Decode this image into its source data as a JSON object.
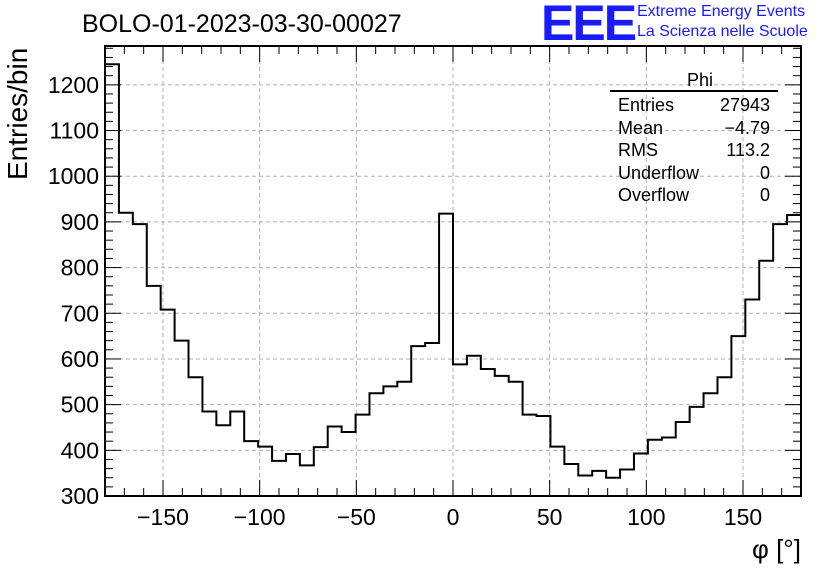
{
  "title": "BOLO-01-2023-03-30-00027",
  "logo": {
    "text": "EEE",
    "line1": "Extreme Energy Events",
    "line2": "La Scienza nelle Scuole",
    "color": "#1a1aff"
  },
  "stats": {
    "title": "Phi",
    "rows": [
      {
        "label": "Entries",
        "value": "27943"
      },
      {
        "label": "Mean",
        "value": "−4.79"
      },
      {
        "label": "RMS",
        "value": "113.2"
      },
      {
        "label": "Underflow",
        "value": "0"
      },
      {
        "label": "Overflow",
        "value": "0"
      }
    ]
  },
  "chart_data": {
    "type": "histogram",
    "title": "BOLO-01-2023-03-30-00027",
    "xlabel": "φ [°]",
    "ylabel": "Entries/bin",
    "xlim": [
      -180,
      180
    ],
    "ylim": [
      300,
      1285
    ],
    "bin_width": 7.2,
    "x_ticks": [
      -150,
      -100,
      -50,
      0,
      50,
      100,
      150
    ],
    "x_tick_labels": [
      "−150",
      "−100",
      "−50",
      "0",
      "50",
      "100",
      "150"
    ],
    "y_ticks": [
      300,
      400,
      500,
      600,
      700,
      800,
      900,
      1000,
      1100,
      1200
    ],
    "y_tick_labels": [
      "300",
      "400",
      "500",
      "600",
      "700",
      "800",
      "900",
      "1000",
      "1100",
      "1200"
    ],
    "grid": true,
    "values": [
      1245,
      920,
      895,
      760,
      708,
      640,
      560,
      485,
      455,
      485,
      420,
      408,
      377,
      392,
      367,
      407,
      452,
      440,
      478,
      525,
      540,
      550,
      628,
      635,
      918,
      588,
      607,
      578,
      563,
      550,
      478,
      475,
      408,
      370,
      345,
      355,
      340,
      358,
      393,
      423,
      428,
      462,
      495,
      525,
      560,
      650,
      730,
      815,
      895,
      915
    ],
    "line_color": "#000000",
    "grid_color": "#b0b0b0"
  }
}
